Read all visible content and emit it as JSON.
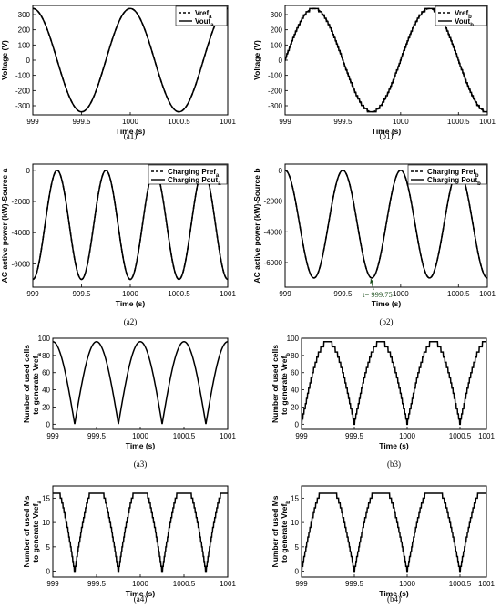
{
  "chart_data": [
    {
      "caption": "(a1)",
      "type": "line",
      "xlabel": "Time (s)",
      "ylabel": "Voltage (V)",
      "xlim": [
        999,
        1001
      ],
      "ylim": [
        -360,
        360
      ],
      "xticks": [
        999,
        999.5,
        1000,
        1000.5,
        1001
      ],
      "xticklabels": [
        "999",
        "999.5",
        "1000",
        "1000.5",
        "1001"
      ],
      "yticks": [
        -300,
        -200,
        -100,
        0,
        100,
        200,
        300
      ],
      "yticklabels": [
        "-300",
        "-200",
        "-100",
        "0",
        "100",
        "200",
        "300"
      ],
      "series": [
        {
          "name": "Vref",
          "sub": "a",
          "style": "dashed",
          "func": "sin",
          "amplitude": 340,
          "frequency": 1,
          "phase_deg": 90
        },
        {
          "name": "Vout",
          "sub": "a",
          "style": "solid",
          "func": "sin",
          "amplitude": 340,
          "frequency": 1,
          "phase_deg": 90
        }
      ]
    },
    {
      "caption": "(b1)",
      "type": "line",
      "xlabel": "Time (s)",
      "ylabel": "Voltage (V)",
      "xlim": [
        999,
        1000.75
      ],
      "ylim": [
        -360,
        360
      ],
      "xticks": [
        999,
        999.5,
        1000,
        1000.5,
        1001
      ],
      "xticklabels": [
        "999",
        "999.5",
        "1000",
        "1000.5",
        "1001"
      ],
      "yticks": [
        -300,
        -200,
        -100,
        0,
        100,
        200,
        300
      ],
      "yticklabels": [
        "-300",
        "-200",
        "-100",
        "0",
        "100",
        "200",
        "300"
      ],
      "series": [
        {
          "name": "Vref",
          "sub": "b",
          "style": "dashed",
          "func": "sin",
          "amplitude": 340,
          "frequency": 1,
          "phase_deg": 0
        },
        {
          "name": "Vout",
          "sub": "b",
          "style": "solid",
          "func": "staircase",
          "amplitude": 340,
          "frequency": 1,
          "phase_deg": 0,
          "levels": 16
        }
      ]
    },
    {
      "caption": "(a2)",
      "type": "line",
      "xlabel": "Time (s)",
      "ylabel": "AC active power (kW)-Source a",
      "xlim": [
        999,
        1001
      ],
      "ylim": [
        -7500,
        400
      ],
      "xticks": [
        999,
        999.5,
        1000,
        1000.5,
        1001
      ],
      "xticklabels": [
        "999",
        "999.5",
        "1000",
        "1000.5",
        "1001"
      ],
      "yticks": [
        -6000,
        -4000,
        -2000,
        0
      ],
      "yticklabels": [
        "-6000",
        "-4000",
        "-2000",
        "0"
      ],
      "series": [
        {
          "name": "Charging Pref",
          "sub": "a",
          "style": "dashed",
          "func": "negsin2",
          "amplitude": 7000,
          "frequency": 1,
          "phase_deg": 90
        },
        {
          "name": "Charging Pout",
          "sub": "a",
          "style": "solid",
          "func": "negsin2",
          "amplitude": 7000,
          "frequency": 1,
          "phase_deg": 90
        }
      ]
    },
    {
      "caption": "(b2)",
      "type": "line",
      "xlabel": "Time (s)",
      "ylabel": "AC active power (kW)-Source b",
      "xlim": [
        999,
        1000.75
      ],
      "ylim": [
        -7600,
        400
      ],
      "xticks": [
        999,
        999.5,
        1000,
        1000.5,
        1001
      ],
      "xticklabels": [
        "999",
        "999.5",
        "1000",
        "1000.5",
        "1001"
      ],
      "yticks": [
        -6000,
        -4000,
        -2000,
        0
      ],
      "yticklabels": [
        "-6000",
        "-4000",
        "-2000",
        "0"
      ],
      "annotation": {
        "text": "t= 999.75",
        "x": 999.75,
        "y": -6950
      },
      "series": [
        {
          "name": "Charging Pref",
          "sub": "b",
          "style": "dashed",
          "func": "negsin2",
          "amplitude": 7000,
          "frequency": 1,
          "phase_deg": 0
        },
        {
          "name": "Charging Pout",
          "sub": "b",
          "style": "solid",
          "func": "negsin2",
          "amplitude": 7000,
          "frequency": 1,
          "phase_deg": 0
        }
      ]
    },
    {
      "caption": "(a3)",
      "type": "line",
      "xlabel": "Time (s)",
      "ylabel": "Number of used cells to generate Vref",
      "ylabel_lines": [
        "Number of used cells",
        "to generate Vref"
      ],
      "ylabel_sub": "a",
      "xlim": [
        999,
        1001
      ],
      "ylim": [
        -6,
        100
      ],
      "xticks": [
        999,
        999.5,
        1000,
        1000.5,
        1001
      ],
      "xticklabels": [
        "999",
        "999.5",
        "1000",
        "1000.5",
        "1001"
      ],
      "yticks": [
        0,
        20,
        40,
        60,
        80,
        100
      ],
      "yticklabels": [
        "0",
        "20",
        "40",
        "60",
        "80",
        "100"
      ],
      "series": [
        {
          "name": "cells",
          "style": "solid",
          "func": "abssin",
          "amplitude": 96,
          "frequency": 1,
          "phase_deg": 90
        }
      ]
    },
    {
      "caption": "(b3)",
      "type": "line",
      "xlabel": "Time (s)",
      "ylabel": "Number of used cells to generate Vref",
      "ylabel_lines": [
        "Number of used cells",
        "to generate Vref"
      ],
      "ylabel_sub": "b",
      "xlim": [
        999,
        1000.75
      ],
      "ylim": [
        -6,
        100
      ],
      "xticks": [
        999,
        999.5,
        1000,
        1000.5,
        1001
      ],
      "xticklabels": [
        "999",
        "999.5",
        "1000",
        "1000.5",
        "1001"
      ],
      "yticks": [
        0,
        20,
        40,
        60,
        80,
        100
      ],
      "yticklabels": [
        "0",
        "20",
        "40",
        "60",
        "80",
        "100"
      ],
      "series": [
        {
          "name": "cells",
          "style": "solid",
          "func": "abssin_step",
          "amplitude": 96,
          "frequency": 1,
          "phase_deg": 0,
          "levels": 16
        }
      ]
    },
    {
      "caption": "(a4)",
      "type": "line",
      "xlabel": "Time (s)",
      "ylabel": "Number of used Ms to generate Vref",
      "ylabel_lines": [
        "Number of used Ms",
        "to generate Vref"
      ],
      "ylabel_sub": "a",
      "xlim": [
        999,
        1001
      ],
      "ylim": [
        -1.2,
        17.5
      ],
      "xticks": [
        999,
        999.5,
        1000,
        1000.5,
        1001
      ],
      "xticklabels": [
        "999",
        "999.5",
        "1000",
        "1000.5",
        "1001"
      ],
      "yticks": [
        0,
        5,
        10,
        15
      ],
      "yticklabels": [
        "0",
        "5",
        "10",
        "15"
      ],
      "series": [
        {
          "name": "Ms",
          "style": "solid",
          "func": "abssin_step_clip",
          "amplitude": 18,
          "frequency": 1,
          "phase_deg": 90,
          "levels": 18,
          "clip": 16
        }
      ]
    },
    {
      "caption": "(b4)",
      "type": "line",
      "xlabel": "Time (s)",
      "ylabel": "Number of used Ms to generate Vref",
      "ylabel_lines": [
        "Number of used Ms",
        "to generate Vref"
      ],
      "ylabel_sub": "b",
      "xlim": [
        999,
        1000.75
      ],
      "ylim": [
        -1.2,
        17.5
      ],
      "xticks": [
        999,
        999.5,
        1000,
        1000.5,
        1001
      ],
      "xticklabels": [
        "999",
        "999.5",
        "1000",
        "1000.5",
        "1001"
      ],
      "yticks": [
        0,
        5,
        10,
        15
      ],
      "yticklabels": [
        "0",
        "5",
        "10",
        "15"
      ],
      "series": [
        {
          "name": "Ms",
          "style": "solid",
          "func": "abssin_step_clip",
          "amplitude": 18,
          "frequency": 1,
          "phase_deg": 0,
          "levels": 18,
          "clip": 16
        }
      ]
    }
  ]
}
